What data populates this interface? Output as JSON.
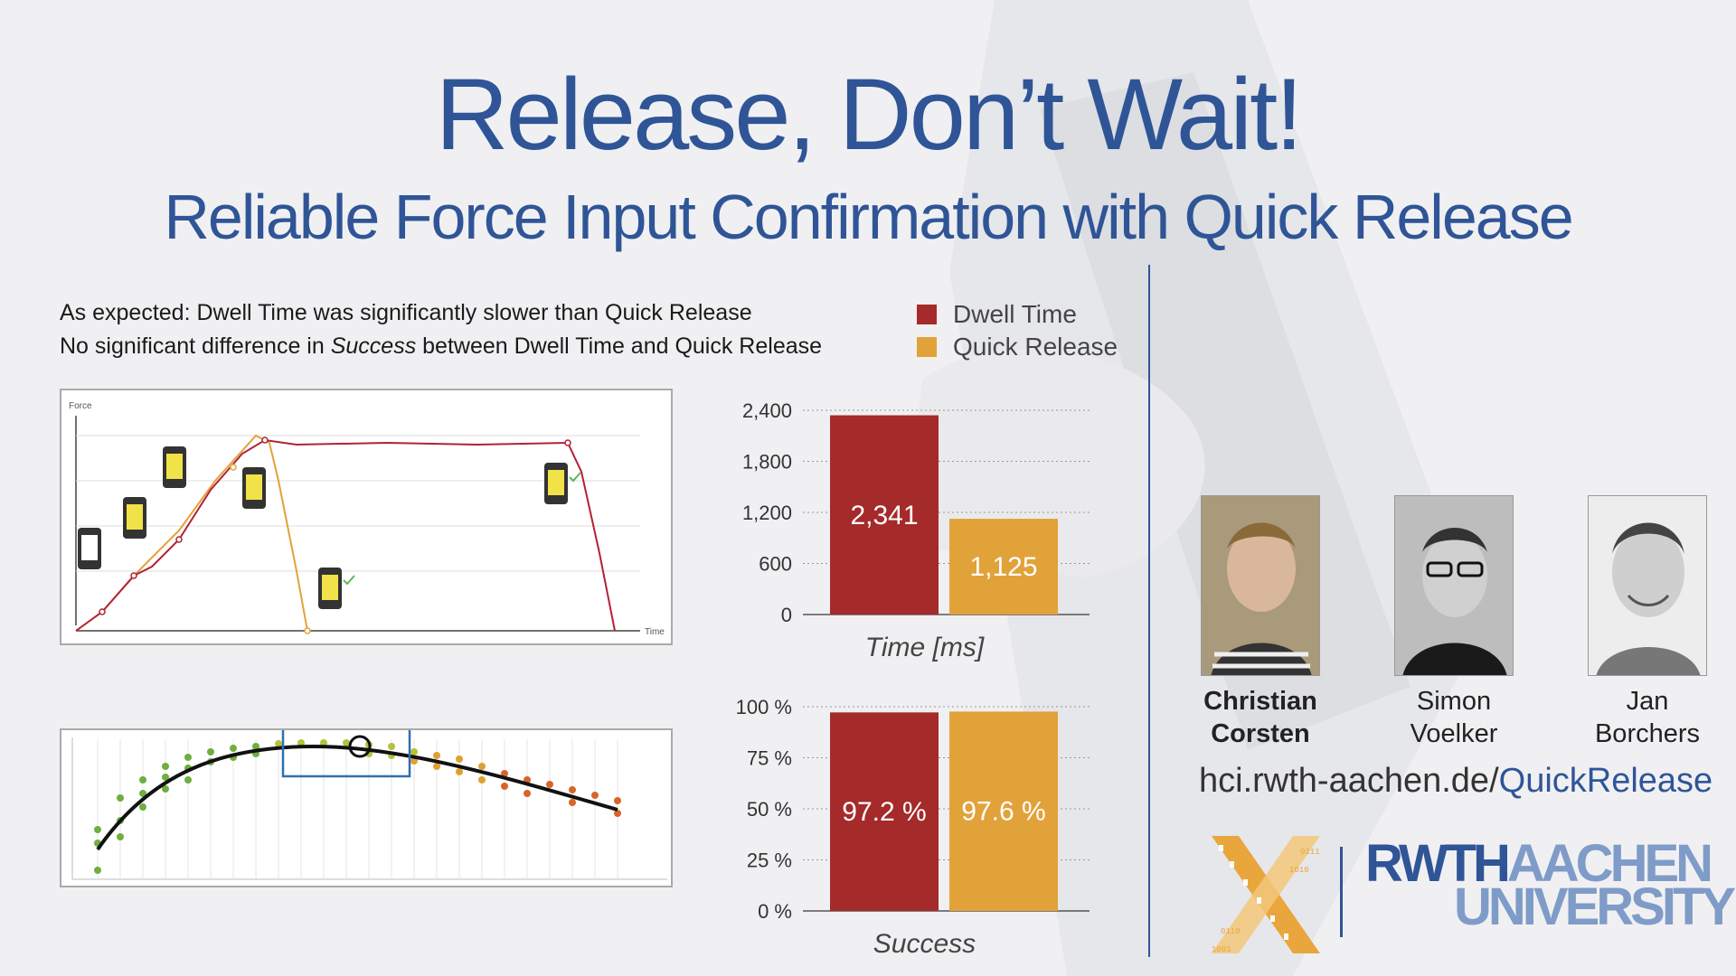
{
  "title": "Release, Don’t Wait!",
  "subtitle": "Reliable Force Input Confirmation with Quick Release",
  "bullets": {
    "line1": "As expected: Dwell Time was significantly slower than Quick Release",
    "line2_pre": "No significant difference in ",
    "line2_em": "Success",
    "line2_post": " between Dwell Time and Quick Release"
  },
  "legend": [
    {
      "label": "Dwell Time",
      "color": "#a52a2a"
    },
    {
      "label": "Quick Release",
      "color": "#e2a23a"
    }
  ],
  "force_plot": {
    "y_label": "Force",
    "x_label": "Time"
  },
  "chart_data": [
    {
      "type": "bar",
      "categories": [
        "Dwell Time",
        "Quick Release"
      ],
      "values": [
        2341,
        1125
      ],
      "value_labels": [
        "2,341",
        "1,125"
      ],
      "xlabel": "Time [ms]",
      "ylim": [
        0,
        2400
      ],
      "yticks": [
        "0",
        "600",
        "1,200",
        "1,800",
        "2,400"
      ],
      "colors": [
        "#a52a2a",
        "#e2a23a"
      ],
      "grid": true
    },
    {
      "type": "bar",
      "categories": [
        "Dwell Time",
        "Quick Release"
      ],
      "values": [
        97.2,
        97.6
      ],
      "value_labels": [
        "97.2 %",
        "97.6 %"
      ],
      "xlabel": "Success",
      "ylim": [
        0,
        100
      ],
      "yticks": [
        "0 %",
        "25 %",
        "50 %",
        "75 %",
        "100 %"
      ],
      "colors": [
        "#a52a2a",
        "#e2a23a"
      ],
      "grid": true
    }
  ],
  "authors": [
    {
      "first": "Christian",
      "last": "Corsten"
    },
    {
      "first": "Simon",
      "last": "Voelker"
    },
    {
      "first": "Jan",
      "last": "Borchers"
    }
  ],
  "url": {
    "prefix": "hci.rwth-aachen.de/",
    "highlight": "QuickRelease"
  },
  "rwth_logo": {
    "part1": "RWTH",
    "part2": "AACHEN",
    "line2": "UNIVERSITY"
  }
}
